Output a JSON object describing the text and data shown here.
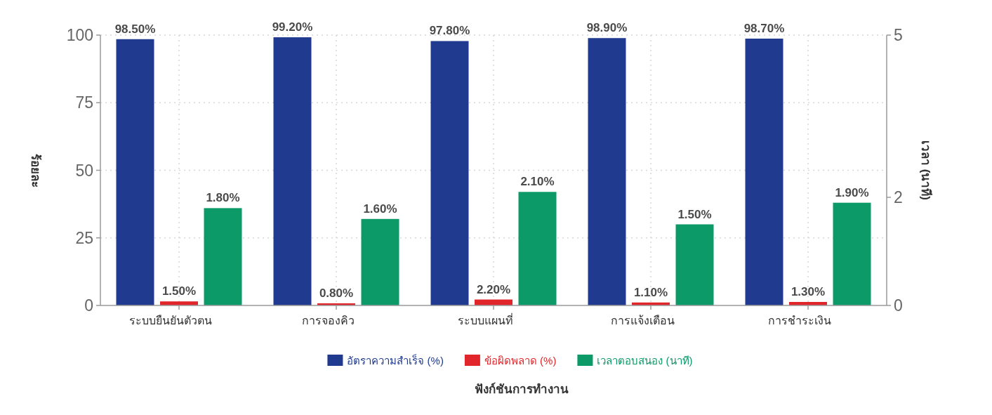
{
  "chart_data": {
    "type": "bar",
    "categories": [
      "ระบบยืนยันตัวตน",
      "การจองคิว",
      "ระบบแผนที่",
      "การแจ้งเตือน",
      "การชำระเงิน"
    ],
    "series": [
      {
        "name": "อัตราความสำเร็จ (%)",
        "color": "#1f3a8f",
        "values": [
          98.5,
          99.2,
          97.8,
          98.9,
          98.7
        ],
        "value_labels": [
          "98.50%",
          "99.20%",
          "97.80%",
          "98.90%",
          "98.70%"
        ]
      },
      {
        "name": "ข้อผิดพลาด (%)",
        "color": "#e0262b",
        "values": [
          1.5,
          0.8,
          2.2,
          1.1,
          1.3
        ],
        "value_labels": [
          "1.50%",
          "0.80%",
          "2.20%",
          "1.10%",
          "1.30%"
        ]
      },
      {
        "name": "เวลาตอบสนอง (นาที)",
        "color": "#0b9a68",
        "axis": "y2",
        "values": [
          1.8,
          1.6,
          2.1,
          1.5,
          1.9
        ],
        "value_labels": [
          "1.80%",
          "1.60%",
          "2.10%",
          "1.50%",
          "1.90%"
        ]
      }
    ],
    "ylim": [
      0,
      100
    ],
    "yticks": [
      0,
      25,
      50,
      75,
      100
    ],
    "y2lim": [
      0,
      5
    ],
    "y2ticks": [
      0,
      2,
      5
    ],
    "ylabel": "ร้อยละ",
    "y2label": "เวลา (นาที)",
    "xlabel": "ฟังก์ชันการทำงาน",
    "grid": true,
    "legend": "bottom"
  }
}
